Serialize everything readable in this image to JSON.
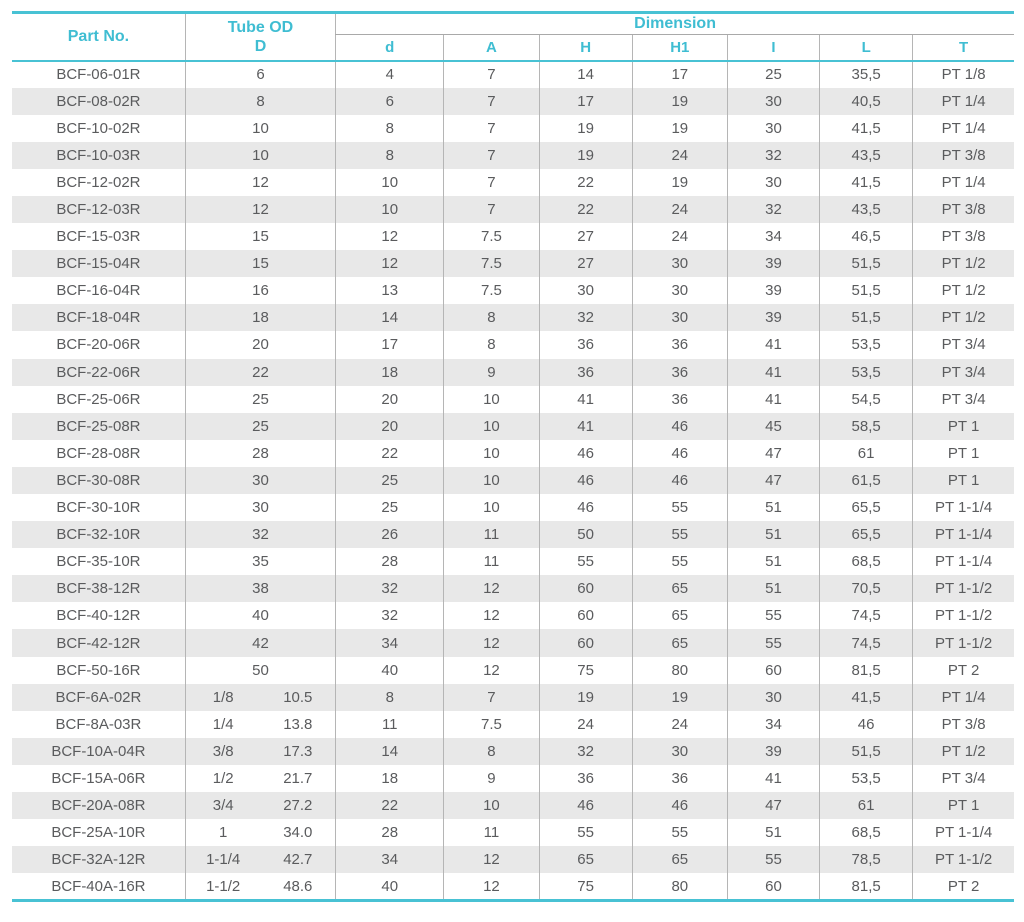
{
  "table": {
    "header": {
      "part_no": "Part No.",
      "tube_od_line1": "Tube OD",
      "tube_od_line2": "D",
      "dimension": "Dimension",
      "sub_columns": [
        "d",
        "A",
        "H",
        "H1",
        "I",
        "L",
        "T"
      ]
    },
    "rows": [
      {
        "part": "BCF-06-01R",
        "od": "6",
        "dims": [
          "4",
          "7",
          "14",
          "17",
          "25",
          "35,5",
          "PT 1/8"
        ]
      },
      {
        "part": "BCF-08-02R",
        "od": "8",
        "dims": [
          "6",
          "7",
          "17",
          "19",
          "30",
          "40,5",
          "PT 1/4"
        ]
      },
      {
        "part": "BCF-10-02R",
        "od": "10",
        "dims": [
          "8",
          "7",
          "19",
          "19",
          "30",
          "41,5",
          "PT 1/4"
        ]
      },
      {
        "part": "BCF-10-03R",
        "od": "10",
        "dims": [
          "8",
          "7",
          "19",
          "24",
          "32",
          "43,5",
          "PT 3/8"
        ]
      },
      {
        "part": "BCF-12-02R",
        "od": "12",
        "dims": [
          "10",
          "7",
          "22",
          "19",
          "30",
          "41,5",
          "PT 1/4"
        ]
      },
      {
        "part": "BCF-12-03R",
        "od": "12",
        "dims": [
          "10",
          "7",
          "22",
          "24",
          "32",
          "43,5",
          "PT 3/8"
        ]
      },
      {
        "part": "BCF-15-03R",
        "od": "15",
        "dims": [
          "12",
          "7.5",
          "27",
          "24",
          "34",
          "46,5",
          "PT 3/8"
        ]
      },
      {
        "part": "BCF-15-04R",
        "od": "15",
        "dims": [
          "12",
          "7.5",
          "27",
          "30",
          "39",
          "51,5",
          "PT 1/2"
        ]
      },
      {
        "part": "BCF-16-04R",
        "od": "16",
        "dims": [
          "13",
          "7.5",
          "30",
          "30",
          "39",
          "51,5",
          "PT 1/2"
        ]
      },
      {
        "part": "BCF-18-04R",
        "od": "18",
        "dims": [
          "14",
          "8",
          "32",
          "30",
          "39",
          "51,5",
          "PT 1/2"
        ]
      },
      {
        "part": "BCF-20-06R",
        "od": "20",
        "dims": [
          "17",
          "8",
          "36",
          "36",
          "41",
          "53,5",
          "PT 3/4"
        ]
      },
      {
        "part": "BCF-22-06R",
        "od": "22",
        "dims": [
          "18",
          "9",
          "36",
          "36",
          "41",
          "53,5",
          "PT 3/4"
        ]
      },
      {
        "part": "BCF-25-06R",
        "od": "25",
        "dims": [
          "20",
          "10",
          "41",
          "36",
          "41",
          "54,5",
          "PT 3/4"
        ]
      },
      {
        "part": "BCF-25-08R",
        "od": "25",
        "dims": [
          "20",
          "10",
          "41",
          "46",
          "45",
          "58,5",
          "PT 1"
        ]
      },
      {
        "part": "BCF-28-08R",
        "od": "28",
        "dims": [
          "22",
          "10",
          "46",
          "46",
          "47",
          "61",
          "PT 1"
        ]
      },
      {
        "part": "BCF-30-08R",
        "od": "30",
        "dims": [
          "25",
          "10",
          "46",
          "46",
          "47",
          "61,5",
          "PT 1"
        ]
      },
      {
        "part": "BCF-30-10R",
        "od": "30",
        "dims": [
          "25",
          "10",
          "46",
          "55",
          "51",
          "65,5",
          "PT 1-1/4"
        ]
      },
      {
        "part": "BCF-32-10R",
        "od": "32",
        "dims": [
          "26",
          "11",
          "50",
          "55",
          "51",
          "65,5",
          "PT 1-1/4"
        ]
      },
      {
        "part": "BCF-35-10R",
        "od": "35",
        "dims": [
          "28",
          "11",
          "55",
          "55",
          "51",
          "68,5",
          "PT 1-1/4"
        ]
      },
      {
        "part": "BCF-38-12R",
        "od": "38",
        "dims": [
          "32",
          "12",
          "60",
          "65",
          "51",
          "70,5",
          "PT 1-1/2"
        ]
      },
      {
        "part": "BCF-40-12R",
        "od": "40",
        "dims": [
          "32",
          "12",
          "60",
          "65",
          "55",
          "74,5",
          "PT 1-1/2"
        ]
      },
      {
        "part": "BCF-42-12R",
        "od": "42",
        "dims": [
          "34",
          "12",
          "60",
          "65",
          "55",
          "74,5",
          "PT 1-1/2"
        ]
      },
      {
        "part": "BCF-50-16R",
        "od": "50",
        "dims": [
          "40",
          "12",
          "75",
          "80",
          "60",
          "81,5",
          "PT 2"
        ]
      },
      {
        "part": "BCF-6A-02R",
        "od": [
          "1/8",
          "10.5"
        ],
        "dims": [
          "8",
          "7",
          "19",
          "19",
          "30",
          "41,5",
          "PT 1/4"
        ]
      },
      {
        "part": "BCF-8A-03R",
        "od": [
          "1/4",
          "13.8"
        ],
        "dims": [
          "11",
          "7.5",
          "24",
          "24",
          "34",
          "46",
          "PT 3/8"
        ]
      },
      {
        "part": "BCF-10A-04R",
        "od": [
          "3/8",
          "17.3"
        ],
        "dims": [
          "14",
          "8",
          "32",
          "30",
          "39",
          "51,5",
          "PT 1/2"
        ]
      },
      {
        "part": "BCF-15A-06R",
        "od": [
          "1/2",
          "21.7"
        ],
        "dims": [
          "18",
          "9",
          "36",
          "36",
          "41",
          "53,5",
          "PT 3/4"
        ]
      },
      {
        "part": "BCF-20A-08R",
        "od": [
          "3/4",
          "27.2"
        ],
        "dims": [
          "22",
          "10",
          "46",
          "46",
          "47",
          "61",
          "PT 1"
        ]
      },
      {
        "part": "BCF-25A-10R",
        "od": [
          "1",
          "34.0"
        ],
        "dims": [
          "28",
          "11",
          "55",
          "55",
          "51",
          "68,5",
          "PT 1-1/4"
        ]
      },
      {
        "part": "BCF-32A-12R",
        "od": [
          "1-1/4",
          "42.7"
        ],
        "dims": [
          "34",
          "12",
          "65",
          "65",
          "55",
          "78,5",
          "PT 1-1/2"
        ]
      },
      {
        "part": "BCF-40A-16R",
        "od": [
          "1-1/2",
          "48.6"
        ],
        "dims": [
          "40",
          "12",
          "75",
          "80",
          "60",
          "81,5",
          "PT 2"
        ]
      }
    ]
  },
  "colors": {
    "accent_teal": "#48c2d4",
    "header_text_teal": "#3fbdd2",
    "body_text_gray": "#5a5b5d",
    "alt_row_gray": "#e8e8e8",
    "grid_line_gray": "#b5b5b5"
  }
}
